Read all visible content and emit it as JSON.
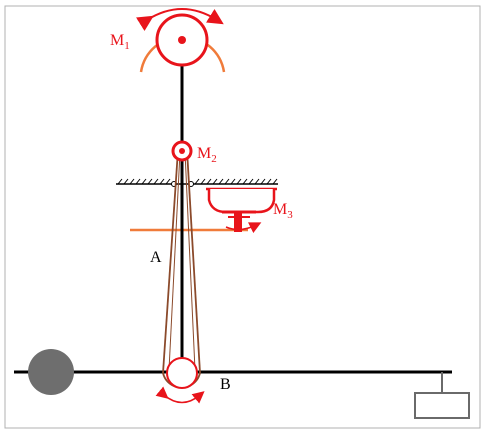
{
  "labels": {
    "m1": {
      "main": "M",
      "sub": "1"
    },
    "m2": {
      "main": "M",
      "sub": "2"
    },
    "m3": {
      "main": "M",
      "sub": "3"
    },
    "a": "A",
    "b": "B"
  },
  "colors": {
    "frame": "#b0b0b0",
    "mechanism_red": "#e8141b",
    "arc_orange": "#f07b3a",
    "belt_brown": "#8b4a2b",
    "rod_black": "#000000",
    "ball_gray": "#6e6e6e",
    "label_red": "#e8141b",
    "label_black": "#000000",
    "block_gray": "#6a6a6a"
  },
  "icons": {
    "rotation_arrow": "double-headed-curved-arrow-icon",
    "hinge": "pin-joint-icon",
    "ground": "hatched-ground-icon"
  }
}
